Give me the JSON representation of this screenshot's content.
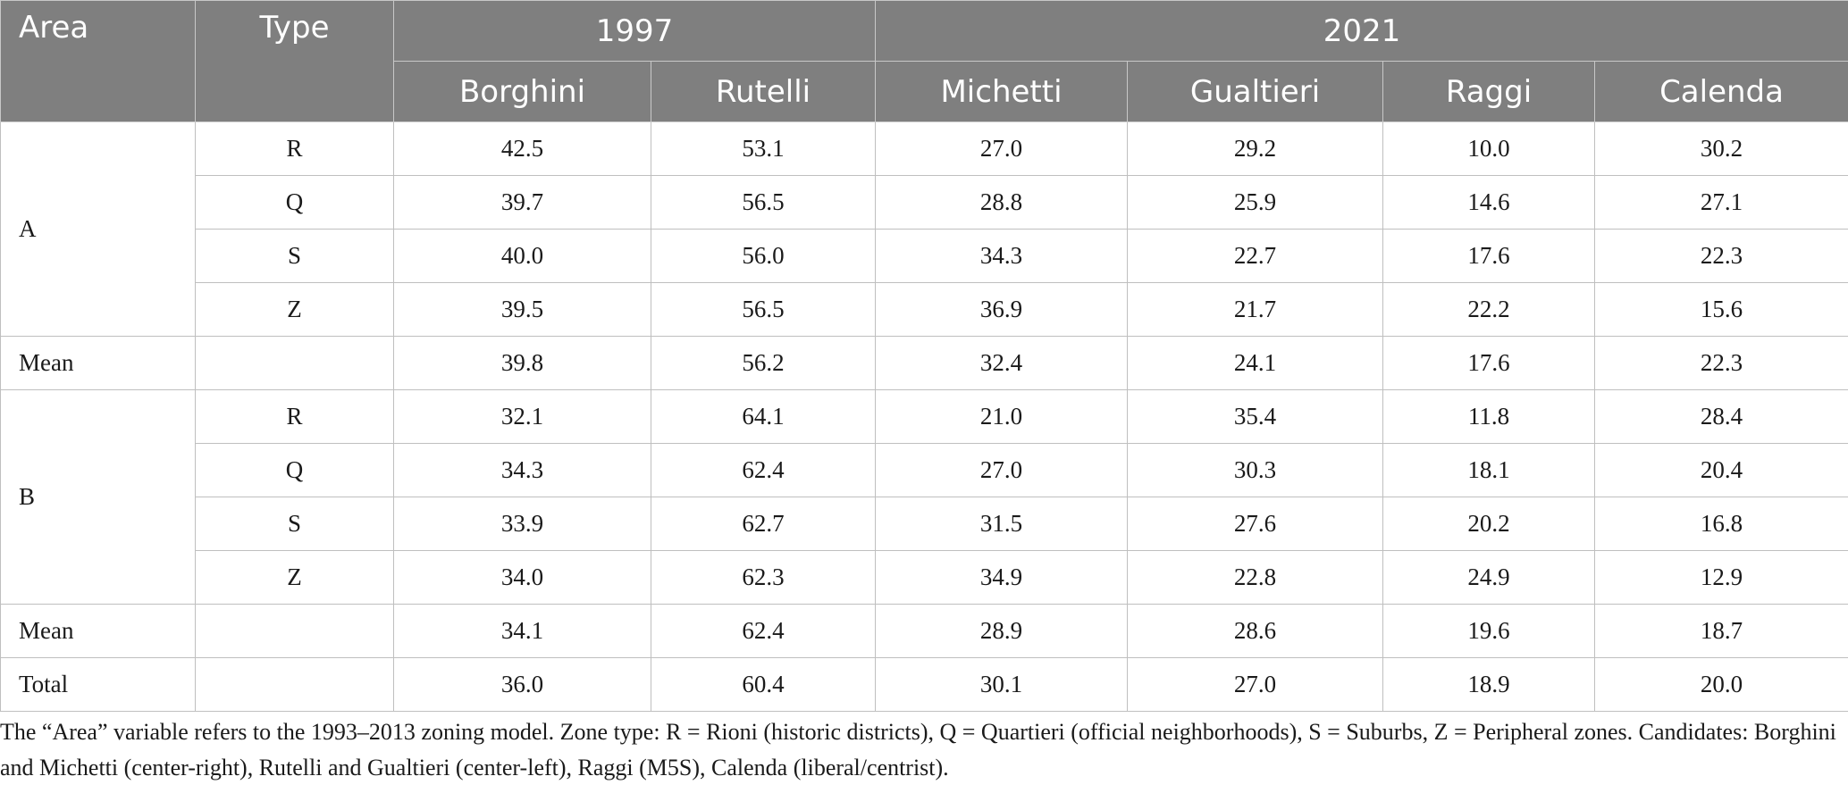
{
  "headers": {
    "area": "Area",
    "type": "Type",
    "year1": "1997",
    "year2": "2021",
    "candidates": [
      "Borghini",
      "Rutelli",
      "Michetti",
      "Gualtieri",
      "Raggi",
      "Calenda"
    ]
  },
  "groups": {
    "A": {
      "label": "A",
      "rows": [
        {
          "type": "R",
          "values": [
            "42.5",
            "53.1",
            "27.0",
            "29.2",
            "10.0",
            "30.2"
          ]
        },
        {
          "type": "Q",
          "values": [
            "39.7",
            "56.5",
            "28.8",
            "25.9",
            "14.6",
            "27.1"
          ]
        },
        {
          "type": "S",
          "values": [
            "40.0",
            "56.0",
            "34.3",
            "22.7",
            "17.6",
            "22.3"
          ]
        },
        {
          "type": "Z",
          "values": [
            "39.5",
            "56.5",
            "36.9",
            "21.7",
            "22.2",
            "15.6"
          ]
        }
      ],
      "mean": {
        "label": "Mean",
        "values": [
          "39.8",
          "56.2",
          "32.4",
          "24.1",
          "17.6",
          "22.3"
        ]
      }
    },
    "B": {
      "label": "B",
      "rows": [
        {
          "type": "R",
          "values": [
            "32.1",
            "64.1",
            "21.0",
            "35.4",
            "11.8",
            "28.4"
          ]
        },
        {
          "type": "Q",
          "values": [
            "34.3",
            "62.4",
            "27.0",
            "30.3",
            "18.1",
            "20.4"
          ]
        },
        {
          "type": "S",
          "values": [
            "33.9",
            "62.7",
            "31.5",
            "27.6",
            "20.2",
            "16.8"
          ]
        },
        {
          "type": "Z",
          "values": [
            "34.0",
            "62.3",
            "34.9",
            "22.8",
            "24.9",
            "12.9"
          ]
        }
      ],
      "mean": {
        "label": "Mean",
        "values": [
          "34.1",
          "62.4",
          "28.9",
          "28.6",
          "19.6",
          "18.7"
        ]
      }
    }
  },
  "total": {
    "label": "Total",
    "values": [
      "36.0",
      "60.4",
      "30.1",
      "27.0",
      "18.9",
      "20.0"
    ]
  },
  "footnote": "The “Area” variable refers to the 1993–2013 zoning model. Zone type: R = Rioni (historic districts), Q = Quartieri (official neighborhoods), S = Suburbs, Z = Peripheral zones. Candidates: Borghini and Michetti (center-right), Rutelli and Gualtieri (center-left), Raggi (M5S), Calenda (liberal/centrist).",
  "colors": {
    "header_bg": "#7f7f7f",
    "header_text": "#ffffff",
    "grid": "#bfbfbf"
  }
}
